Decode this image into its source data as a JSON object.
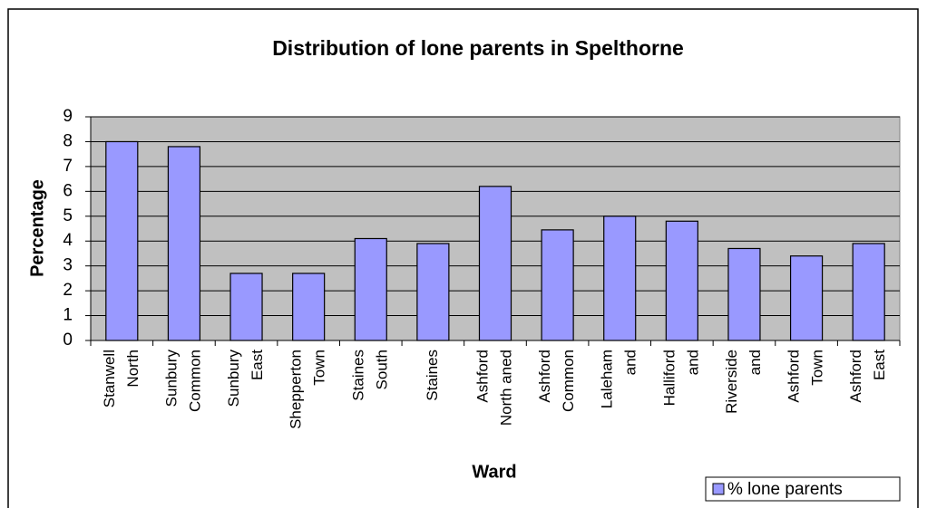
{
  "chart_data": {
    "type": "bar",
    "title": "Distribution of lone parents in Spelthorne",
    "x_label": "Ward",
    "y_label": "Percentage",
    "categories": [
      [
        "Stanwell",
        "North"
      ],
      [
        "Sunbury",
        "Common"
      ],
      [
        "Sunbury",
        "East"
      ],
      [
        "Shepperton",
        "Town"
      ],
      [
        "Staines",
        "South"
      ],
      [
        "Staines"
      ],
      [
        "Ashford",
        "North aned"
      ],
      [
        "Ashford",
        "Common"
      ],
      [
        "Laleham",
        "and"
      ],
      [
        "Halliford",
        "and"
      ],
      [
        "Riverside",
        "and"
      ],
      [
        "Ashford",
        "Town"
      ],
      [
        "Ashford",
        "East"
      ]
    ],
    "series": [
      {
        "name": "% lone parents",
        "color": "#9999ff",
        "values": [
          8.0,
          7.8,
          2.7,
          2.7,
          4.1,
          3.9,
          6.2,
          4.45,
          5.0,
          4.8,
          3.7,
          3.4,
          3.9
        ]
      }
    ],
    "ylim": [
      0,
      9
    ],
    "yticks": [
      0,
      1,
      2,
      3,
      4,
      5,
      6,
      7,
      8,
      9
    ],
    "grid": true,
    "legend": "bottom-right"
  }
}
